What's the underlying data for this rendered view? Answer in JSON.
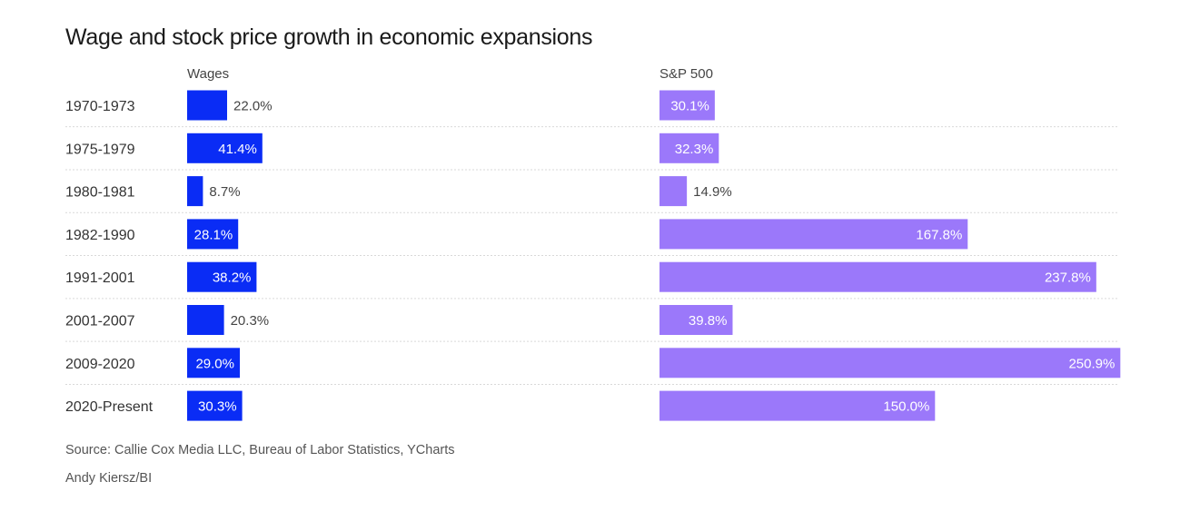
{
  "chart_data": {
    "type": "bar",
    "title": "Wage and stock price growth in economic expansions",
    "categories": [
      "1970-1973",
      "1975-1979",
      "1980-1981",
      "1982-1990",
      "1991-2001",
      "2001-2007",
      "2009-2020",
      "2020-Present"
    ],
    "series": [
      {
        "name": "Wages",
        "values": [
          22.0,
          41.4,
          8.7,
          28.1,
          38.2,
          20.3,
          29.0,
          30.3
        ],
        "labels": [
          "22.0%",
          "41.4%",
          "8.7%",
          "28.1%",
          "38.2%",
          "20.3%",
          "29.0%",
          "30.3%"
        ]
      },
      {
        "name": "S&P 500",
        "values": [
          30.1,
          32.3,
          14.9,
          167.8,
          237.8,
          39.8,
          250.9,
          150.0
        ],
        "labels": [
          "30.1%",
          "32.3%",
          "14.9%",
          "167.8%",
          "237.8%",
          "39.8%",
          "250.9%",
          "150.0%"
        ]
      }
    ],
    "orientation": "horizontal",
    "grid": false
  },
  "colors": {
    "wages": "#0a2cf5",
    "sp500": "#9b78fa",
    "divider": "#d9d9d9"
  },
  "source": "Source: Callie Cox Media LLC, Bureau of Labor Statistics, YCharts",
  "credit": "Andy Kiersz/BI"
}
